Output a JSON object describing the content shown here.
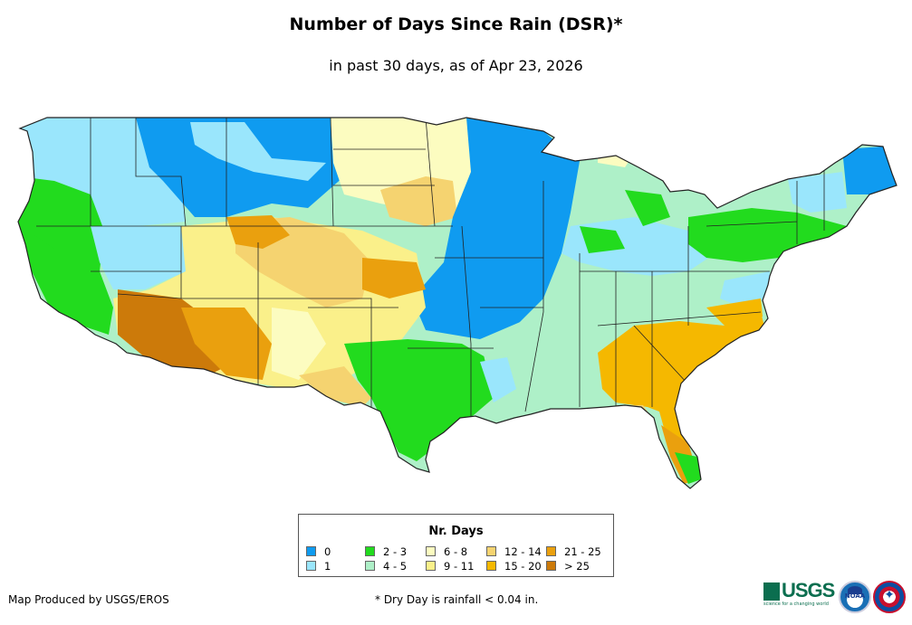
{
  "title": "Number of Days Since Rain (DSR)*",
  "subtitle": "in past 30 days, as of Apr 23, 2026",
  "legend": {
    "title": "Nr. Days",
    "items": [
      {
        "label": "0",
        "color": "#0f9bf0"
      },
      {
        "label": "1",
        "color": "#9ae6fc"
      },
      {
        "label": "2 - 3",
        "color": "#22db1e"
      },
      {
        "label": "4 - 5",
        "color": "#aef0c8"
      },
      {
        "label": "6 - 8",
        "color": "#fcfcc0"
      },
      {
        "label": "9 - 11",
        "color": "#faf08a"
      },
      {
        "label": "12 - 14",
        "color": "#f5d370"
      },
      {
        "label": "15 - 20",
        "color": "#f5b800"
      },
      {
        "label": "21 - 25",
        "color": "#eaa00e"
      },
      {
        "label": "> 25",
        "color": "#cc7a0a"
      }
    ]
  },
  "footer": {
    "producer": "Map Produced by USGS/EROS",
    "note": "* Dry Day is rainfall < 0.04 in."
  },
  "logos": {
    "usgs": "USGS",
    "usgs_tagline": "science for a changing world",
    "noaa": "NOAA",
    "nws_icon": "star-icon"
  }
}
